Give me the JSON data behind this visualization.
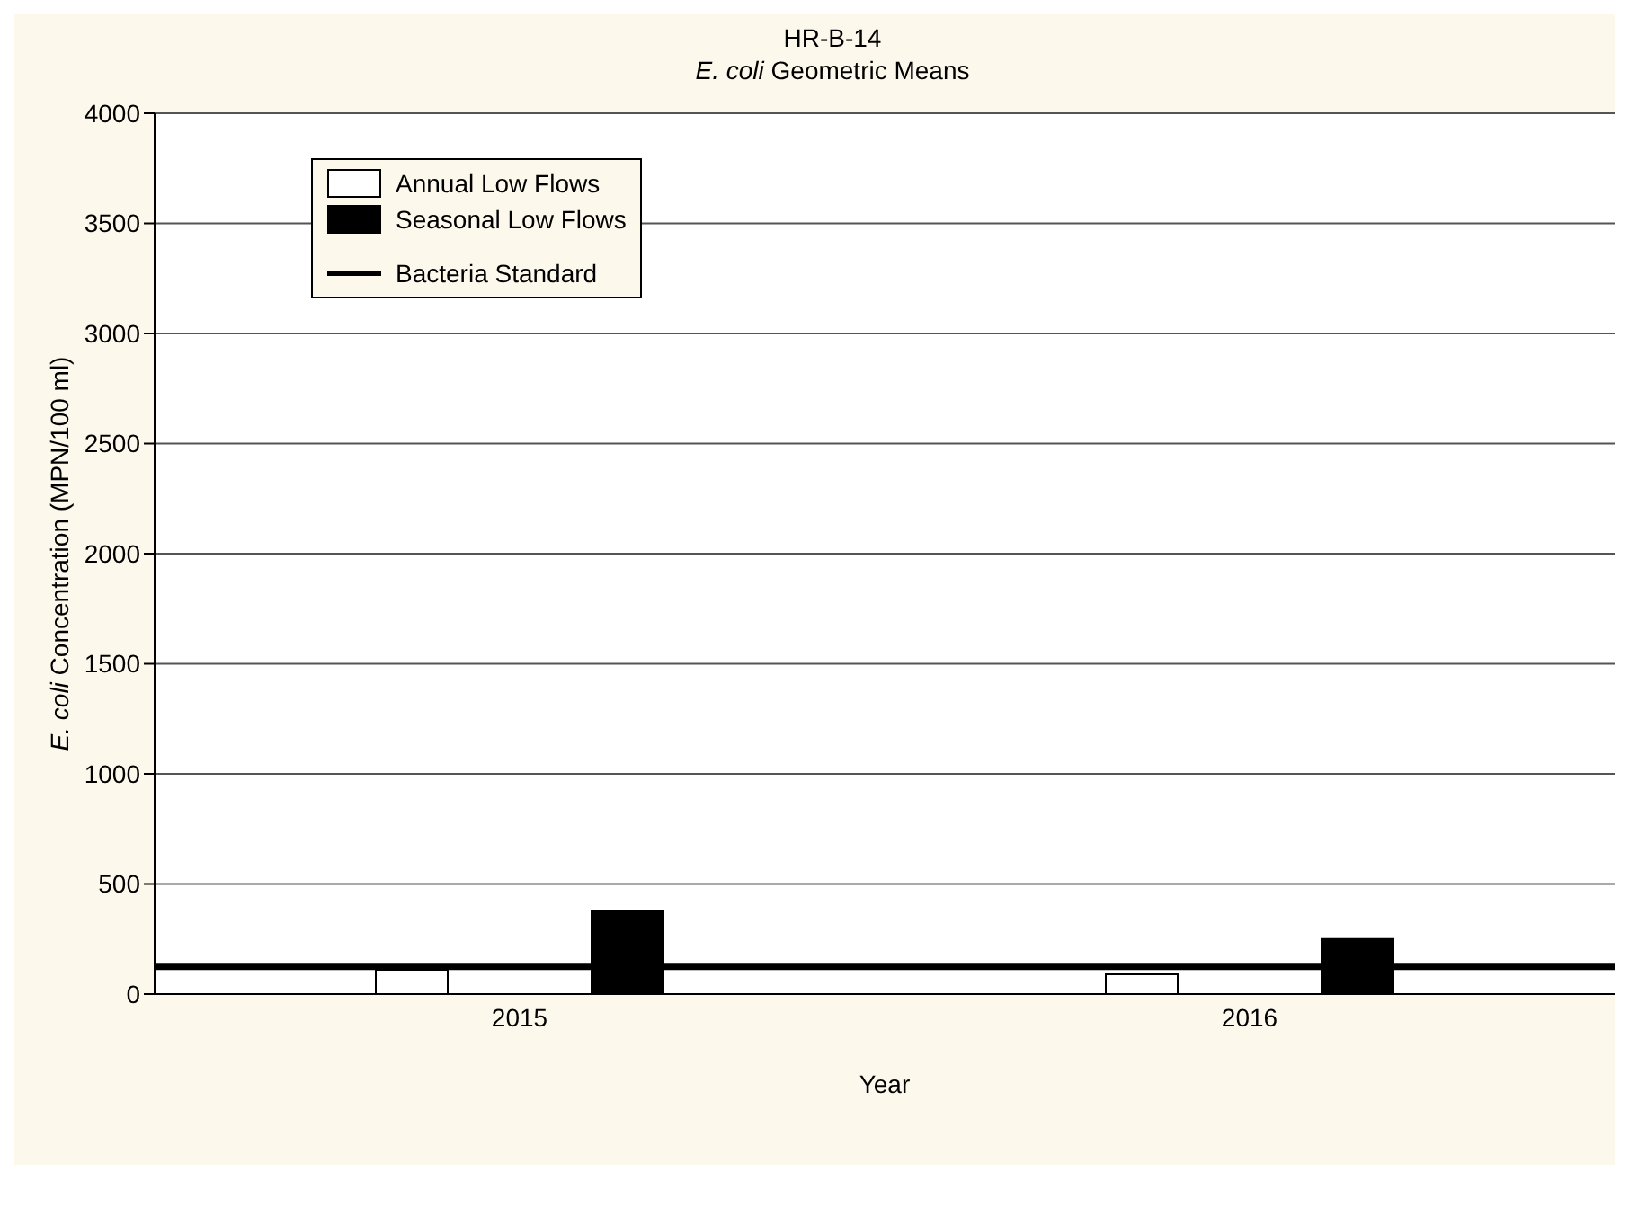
{
  "chart_data": {
    "type": "bar",
    "title": "HR-B-14",
    "subtitle": "E. coli Geometric Means",
    "xlabel": "Year",
    "ylabel": "E. coli Concentration (MPN/100 ml)",
    "categories": [
      "2015",
      "2016"
    ],
    "series": [
      {
        "name": "Annual Low Flows",
        "color": "#ffffff",
        "values": [
          110,
          90
        ]
      },
      {
        "name": "Seasonal Low Flows",
        "color": "#000000",
        "values": [
          380,
          250
        ]
      }
    ],
    "ylim": [
      0,
      4000
    ],
    "yticks": [
      0,
      500,
      1000,
      1500,
      2000,
      2500,
      3000,
      3500,
      4000
    ],
    "grid": "y",
    "legend": "top left",
    "ref_lines": [
      {
        "axis": "y",
        "value": 126,
        "label": "Bacteria Standard",
        "color": "#000000"
      }
    ]
  }
}
